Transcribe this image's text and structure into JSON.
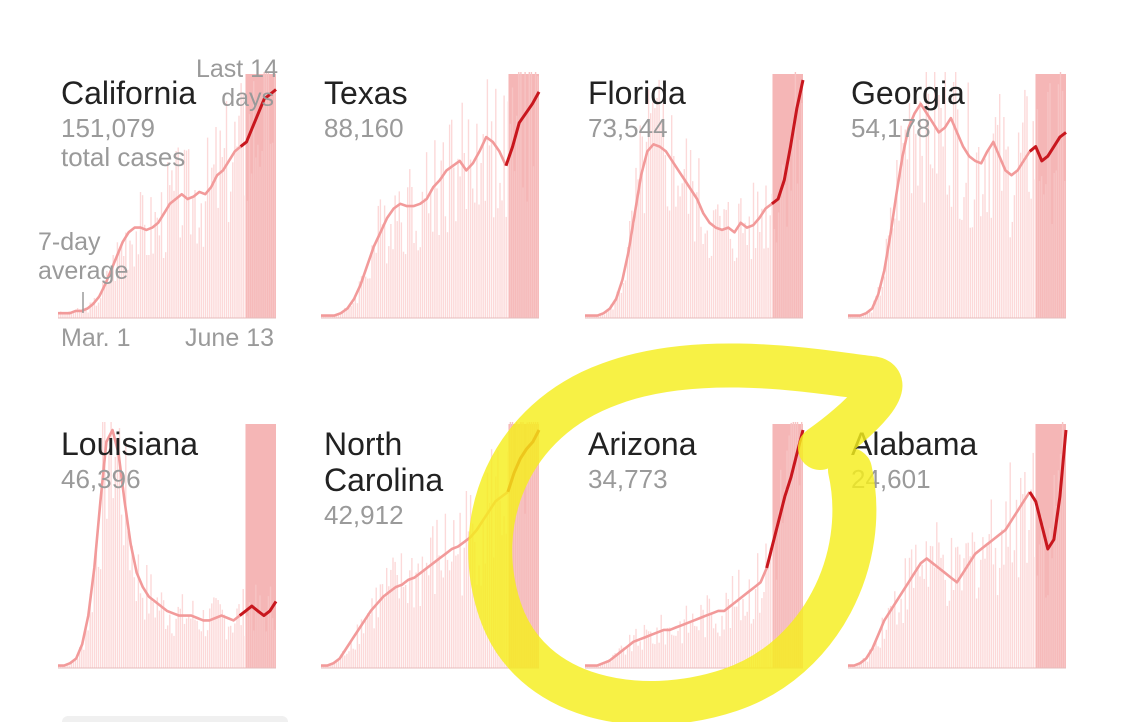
{
  "chart_data": {
    "type": "bar",
    "annotations": {
      "total_cases_label": "total cases",
      "last_14_days_line1": "Last 14",
      "last_14_days_line2": "days",
      "avg_line1": "7-day",
      "avg_line2": "average",
      "x_start": "Mar. 1",
      "x_end": "June 13"
    },
    "colors": {
      "bar": "#fcd9d9",
      "recent_bg": "#f5b6b6",
      "average_line": "#f29a9a",
      "recent_line": "#c8171e",
      "highlight": "#f5ee1c"
    },
    "states": [
      {
        "name": "California",
        "total": "151,079",
        "avg": [
          2,
          2,
          2,
          3,
          3,
          4,
          6,
          9,
          14,
          20,
          26,
          32,
          36,
          38,
          38,
          37,
          38,
          40,
          44,
          48,
          50,
          52,
          50,
          51,
          53,
          52,
          55,
          60,
          62,
          66,
          70,
          72,
          74,
          80,
          86,
          92,
          94,
          96
        ]
      },
      {
        "name": "Texas",
        "total": "88,160",
        "avg": [
          1,
          1,
          1,
          2,
          4,
          8,
          14,
          22,
          30,
          36,
          42,
          46,
          48,
          47,
          47,
          48,
          50,
          55,
          58,
          62,
          64,
          66,
          62,
          65,
          70,
          76,
          74,
          70,
          64,
          72,
          82,
          86,
          90,
          95
        ]
      },
      {
        "name": "Florida",
        "total": "73,544",
        "avg": [
          1,
          1,
          1,
          2,
          4,
          8,
          16,
          28,
          44,
          60,
          70,
          73,
          72,
          70,
          66,
          62,
          58,
          54,
          50,
          44,
          40,
          38,
          37,
          38,
          36,
          40,
          38,
          39,
          42,
          46,
          48,
          50,
          58,
          72,
          88,
          100
        ]
      },
      {
        "name": "Georgia",
        "total": "54,178",
        "avg": [
          1,
          1,
          1,
          2,
          4,
          10,
          20,
          35,
          52,
          68,
          80,
          86,
          90,
          86,
          82,
          78,
          80,
          84,
          78,
          72,
          68,
          66,
          65,
          70,
          74,
          68,
          62,
          60,
          62,
          66,
          70,
          72,
          66,
          68,
          72,
          76,
          78
        ]
      },
      {
        "name": "Louisiana",
        "total": "46,396",
        "avg": [
          1,
          1,
          2,
          4,
          10,
          22,
          42,
          70,
          95,
          100,
          90,
          70,
          52,
          40,
          34,
          30,
          28,
          26,
          24,
          23,
          22,
          22,
          22,
          21,
          20,
          20,
          21,
          22,
          21,
          20,
          22,
          24,
          26,
          24,
          22,
          24,
          28
        ]
      },
      {
        "name": "North Carolina",
        "total": "42,912",
        "avg": [
          1,
          1,
          2,
          4,
          8,
          12,
          16,
          20,
          24,
          27,
          30,
          32,
          34,
          35,
          37,
          38,
          40,
          42,
          44,
          46,
          48,
          50,
          51,
          53,
          55,
          58,
          62,
          66,
          70,
          72,
          74,
          82,
          88,
          92,
          95,
          100
        ]
      },
      {
        "name": "Arizona",
        "total": "34,773",
        "avg": [
          1,
          1,
          1,
          2,
          3,
          5,
          7,
          9,
          11,
          12,
          13,
          14,
          15,
          16,
          16,
          17,
          18,
          19,
          20,
          21,
          22,
          23,
          24,
          24,
          26,
          28,
          30,
          32,
          34,
          36,
          42,
          52,
          62,
          72,
          80,
          90,
          100
        ]
      },
      {
        "name": "Alabama",
        "total": "24,601",
        "avg": [
          1,
          1,
          2,
          4,
          8,
          14,
          20,
          24,
          28,
          32,
          36,
          40,
          44,
          46,
          44,
          42,
          40,
          38,
          36,
          40,
          44,
          48,
          50,
          52,
          54,
          56,
          58,
          62,
          66,
          70,
          74,
          70,
          60,
          50,
          54,
          72,
          100
        ]
      }
    ]
  }
}
